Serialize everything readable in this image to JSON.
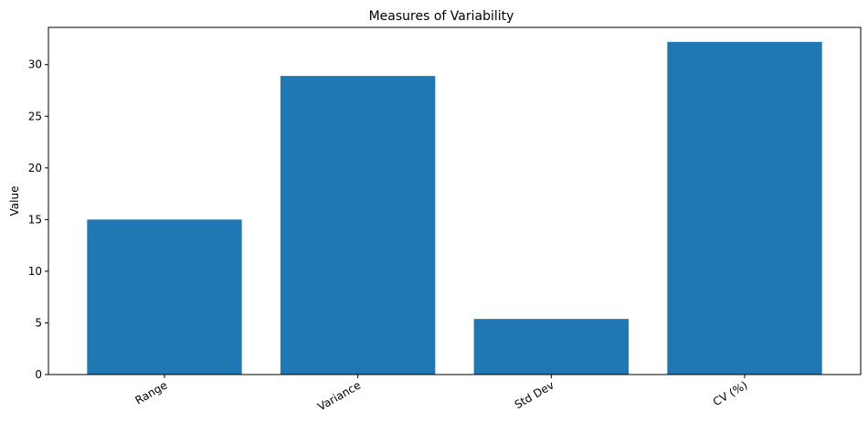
{
  "chart_data": {
    "type": "bar",
    "title": "Measures of Variability",
    "xlabel": "",
    "ylabel": "Value",
    "categories": [
      "Range",
      "Variance",
      "Std Dev",
      "CV (%)"
    ],
    "values": [
      15,
      28.9,
      5.38,
      32.2
    ],
    "ylim": [
      0,
      33.6
    ],
    "yticks": [
      0,
      5,
      10,
      15,
      20,
      25,
      30
    ],
    "grid": false,
    "bar_color": "#1f77b4"
  }
}
